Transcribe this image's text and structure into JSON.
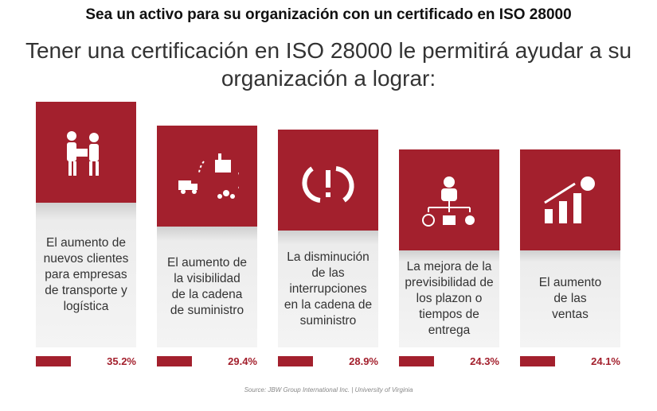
{
  "header": {
    "title": "Sea un activo para su organización con un certificado en ISO 28000",
    "subtitle": [
      "Tener una certificación en ISO 28000 le permitirá ayudar a su",
      "organización a lograr:"
    ]
  },
  "items": [
    {
      "label": [
        "El aumento de",
        "nuevos clientes",
        "para empresas",
        "de transporte y",
        "logística"
      ],
      "value": "35.2%"
    },
    {
      "label": [
        "El aumento de",
        "la visibilidad",
        "de la cadena",
        "de suministro"
      ],
      "value": "29.4%"
    },
    {
      "label": [
        "La disminución",
        "de las",
        "interrupciones",
        "en la cadena de",
        "suministro"
      ],
      "value": "28.9%"
    },
    {
      "label": [
        "La mejora de la",
        "previsibilidad de",
        "los plazon o",
        "tiempos de",
        "entrega"
      ],
      "value": "24.3%"
    },
    {
      "label": [
        "El aumento",
        "de las",
        "ventas"
      ],
      "value": "24.1%"
    }
  ],
  "source": "Source: JBW Group International Inc. | University of Virginia"
}
